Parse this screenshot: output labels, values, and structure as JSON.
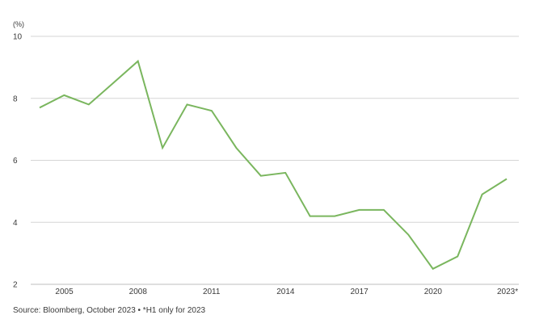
{
  "chart_data": {
    "type": "line",
    "title": "",
    "xlabel": "",
    "ylabel": "(%)",
    "ylim": [
      2,
      10
    ],
    "y_ticks": [
      2,
      4,
      6,
      8,
      10
    ],
    "x_tick_labels": [
      "2005",
      "2008",
      "2011",
      "2014",
      "2017",
      "2020",
      "2023*"
    ],
    "x_tick_years": [
      2005,
      2008,
      2011,
      2014,
      2017,
      2020,
      2023
    ],
    "grid": "horizontal",
    "line_color": "#7ab65e",
    "series": [
      {
        "x": [
          2004,
          2005,
          2006,
          2007,
          2008,
          2009,
          2010,
          2011,
          2012,
          2013,
          2014,
          2015,
          2016,
          2017,
          2018,
          2019,
          2020,
          2021,
          2022,
          2023
        ],
        "values": [
          7.7,
          8.1,
          7.8,
          8.5,
          9.2,
          6.4,
          7.8,
          7.6,
          6.4,
          5.5,
          5.6,
          4.2,
          4.2,
          4.4,
          4.4,
          3.6,
          2.5,
          2.9,
          4.9,
          5.4
        ]
      }
    ],
    "source": "Source: Bloomberg, October 2023 • *H1 only for 2023"
  }
}
